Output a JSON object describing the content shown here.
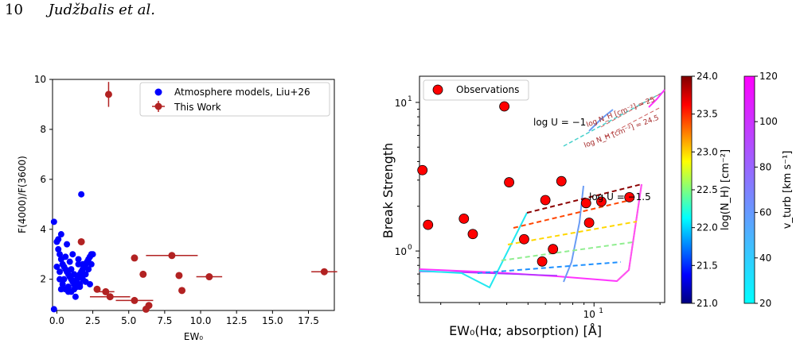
{
  "page_header": {
    "page_number": "10",
    "authors": "Judžbalis et al."
  },
  "chart_data": [
    {
      "type": "scatter",
      "xlabel": "EW₀",
      "ylabel": "F(4000)/F(3600)",
      "xlim": [
        -0.3,
        19.3
      ],
      "ylim": [
        0.75,
        10
      ],
      "xticks": [
        "0.0",
        "2.5",
        "5.0",
        "7.5",
        "10.0",
        "12.5",
        "15.0",
        "17.5"
      ],
      "yticks": [
        "2",
        "4",
        "6",
        "8",
        "10"
      ],
      "legend": {
        "placement": "top-right",
        "entries": [
          "Atmosphere models, Liu+26",
          "This Work"
        ]
      },
      "colors": {
        "models": "#0000ff",
        "this_work": "#b22222"
      },
      "series": [
        {
          "name": "Atmosphere models, Liu+26",
          "x": [
            -0.2,
            -0.2,
            0.0,
            0.1,
            0.2,
            0.3,
            0.4,
            0.5,
            0.6,
            0.7,
            0.8,
            0.9,
            1.0,
            1.1,
            1.2,
            1.3,
            1.4,
            1.5,
            1.6,
            1.7,
            1.8,
            1.9,
            2.0,
            2.1,
            2.2,
            2.3,
            2.4,
            2.5,
            0.2,
            0.4,
            0.6,
            0.8,
            1.0,
            1.2,
            1.4,
            1.6,
            1.8,
            2.0,
            2.2,
            2.4,
            0.3,
            0.7,
            1.1,
            1.5,
            1.9,
            2.3,
            0.0,
            0.5,
            1.0,
            1.5,
            2.0,
            0.1,
            0.6,
            1.2,
            1.8,
            0.3,
            0.9,
            1.3,
            0.2,
            0.8,
            1.6,
            1.7
          ],
          "y": [
            4.3,
            0.8,
            3.5,
            3.2,
            3.0,
            2.8,
            2.6,
            2.5,
            2.4,
            2.3,
            2.2,
            2.1,
            2.0,
            1.9,
            1.8,
            1.9,
            2.0,
            2.1,
            2.2,
            2.3,
            2.4,
            2.5,
            2.6,
            2.7,
            2.8,
            2.9,
            3.0,
            3.0,
            2.0,
            1.8,
            1.6,
            1.7,
            1.5,
            1.6,
            1.7,
            1.8,
            2.0,
            2.2,
            2.4,
            2.6,
            3.8,
            3.4,
            3.0,
            2.6,
            2.2,
            1.8,
            2.5,
            2.0,
            2.4,
            2.8,
            1.9,
            3.6,
            2.9,
            2.2,
            2.6,
            1.6,
            2.7,
            1.3,
            2.3,
            1.5,
            1.7,
            5.4
          ]
        },
        {
          "name": "This Work",
          "points": [
            {
              "x": 3.6,
              "y": 9.4,
              "yerr": 0.5
            },
            {
              "x": 1.7,
              "y": 3.5
            },
            {
              "x": 2.8,
              "y": 1.6
            },
            {
              "x": 3.4,
              "y": 1.5,
              "xerr": 0.6
            },
            {
              "x": 3.7,
              "y": 1.3,
              "xerr": 1.4
            },
            {
              "x": 5.4,
              "y": 2.85
            },
            {
              "x": 5.4,
              "y": 1.15,
              "xerr": 1.3
            },
            {
              "x": 6.0,
              "y": 2.2
            },
            {
              "x": 6.4,
              "y": 0.95
            },
            {
              "x": 6.2,
              "y": 0.8
            },
            {
              "x": 8.0,
              "y": 2.95,
              "xerr": 1.8
            },
            {
              "x": 8.5,
              "y": 2.15
            },
            {
              "x": 8.7,
              "y": 1.55
            },
            {
              "x": 10.6,
              "y": 2.1,
              "xerr": 0.9
            },
            {
              "x": 18.6,
              "y": 2.3,
              "xerr": 0.9
            }
          ]
        }
      ]
    },
    {
      "type": "scatter",
      "scale": "log-log",
      "xlabel": "EW₀(Hα; absorption) [Å]",
      "ylabel": "Break Strength",
      "xlim": [
        1.6,
        21
      ],
      "ylim": [
        0.45,
        15
      ],
      "xticks": [
        {
          "value": 10,
          "base": "10",
          "exp": "1"
        }
      ],
      "yticks": [
        {
          "value": 1,
          "base": "10",
          "exp": "0"
        },
        {
          "value": 10,
          "base": "10",
          "exp": "1"
        }
      ],
      "legend": {
        "placement": "top-left",
        "entries": [
          "Observations"
        ]
      },
      "observations": {
        "name": "Observations",
        "color": "#ff0000",
        "x": [
          1.65,
          1.75,
          2.55,
          2.8,
          3.9,
          4.1,
          4.8,
          5.8,
          6.0,
          6.5,
          7.1,
          9.2,
          9.5,
          10.8,
          14.5
        ],
        "y": [
          3.5,
          1.5,
          1.65,
          1.3,
          9.4,
          2.9,
          1.2,
          0.85,
          2.2,
          1.03,
          2.95,
          2.1,
          1.55,
          2.15,
          2.3
        ]
      },
      "annotations": [
        "log U = −1",
        "log U = −1.5",
        "log N_H [cm⁻²] = 25",
        "log N_H [cm⁻²] = 24.5"
      ],
      "colorbars": [
        {
          "label": "log(N_H) [cm⁻²]",
          "ticks": [
            "21.0",
            "21.5",
            "22.0",
            "22.5",
            "23.0",
            "23.5",
            "24.0"
          ],
          "colormap": "jet"
        },
        {
          "label": "v_turb [km s⁻¹]",
          "ticks": [
            "20",
            "40",
            "60",
            "80",
            "100",
            "120"
          ],
          "colormap": "cool"
        }
      ]
    }
  ]
}
